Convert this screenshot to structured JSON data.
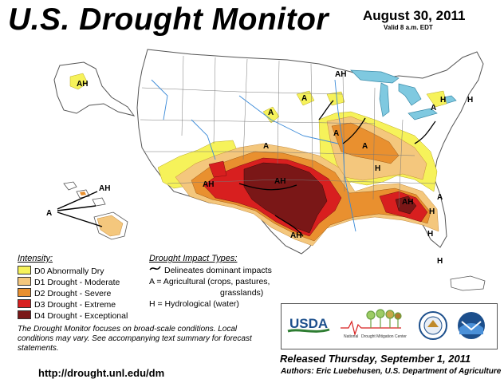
{
  "header": {
    "title": "U.S. Drought Monitor",
    "date": "August 30, 2011",
    "valid": "Valid 8 a.m. EDT"
  },
  "legend": {
    "title": "Intensity:",
    "items": [
      {
        "label": "D0 Abnormally Dry",
        "color": "#f6f25a"
      },
      {
        "label": "D1 Drought - Moderate",
        "color": "#f4c77d"
      },
      {
        "label": "D2 Drought - Severe",
        "color": "#e9902f"
      },
      {
        "label": "D3 Drought - Extreme",
        "color": "#d81f1f"
      },
      {
        "label": "D4 Drought - Exceptional",
        "color": "#7a1717"
      }
    ]
  },
  "impacts": {
    "title": "Drought Impact Types:",
    "line1": "Delineates dominant impacts",
    "line2": "A = Agricultural (crops, pastures,",
    "line3": "grasslands)",
    "line4": "H = Hydrological (water)"
  },
  "note": "The Drought Monitor focuses on broad-scale conditions. Local conditions may vary. See accompanying text summary for forecast statements.",
  "url": "http://drought.unl.edu/dm",
  "released": "Released Thursday, September 1, 2011",
  "authors": "Authors: Eric Luebehusen, U.S. Department of Agriculture",
  "logos": {
    "usda": "USDA",
    "ndmc_line1": "National",
    "ndmc_line2": "Drought Mitigation Center"
  },
  "map_labels": {
    "ah_alaska": "AH",
    "ah_hawaii": "AH",
    "a_hawaii": "A",
    "ah_southwest": "AH",
    "ah_texas_north": "AH",
    "ah_texas_south": "AH",
    "ah_southeast": "AH",
    "ah_northeast": "AH",
    "a_dakota": "A",
    "a_kansas": "A",
    "a_minnesota": "A",
    "a_illinois": "A",
    "a_indiana": "A",
    "a_michigan": "A",
    "h_michigan": "H",
    "h_newyork": "H",
    "h_kentucky": "H",
    "h_carolina": "H",
    "h_georgia": "H",
    "h_florida": "H",
    "a_carolina": "A"
  }
}
